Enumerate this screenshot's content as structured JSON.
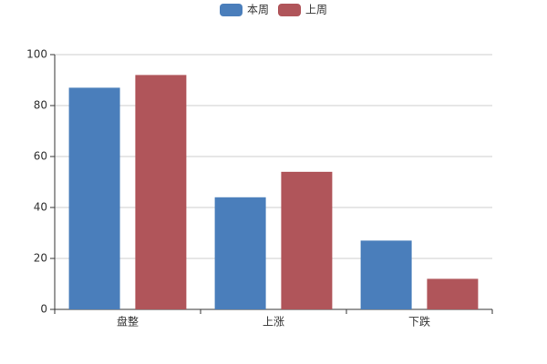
{
  "chart_data": {
    "type": "bar",
    "categories": [
      "盘整",
      "上涨",
      "下跌"
    ],
    "series": [
      {
        "name": "本周",
        "color": "#4a7ebb",
        "values": [
          87,
          44,
          27
        ]
      },
      {
        "name": "上周",
        "color": "#b0555a",
        "values": [
          92,
          54,
          12
        ]
      }
    ],
    "ylim": [
      0,
      100
    ],
    "yticks": [
      0,
      20,
      40,
      60,
      80,
      100
    ],
    "grid": true,
    "legend": "top"
  }
}
